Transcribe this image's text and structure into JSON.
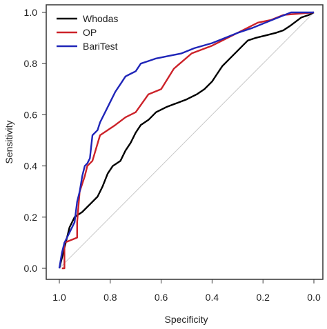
{
  "chart_data": {
    "type": "line",
    "title": "",
    "xlabel": "Specificity",
    "ylabel": "Sensitivity",
    "xlim": [
      1.0,
      0.0
    ],
    "ylim": [
      0.0,
      1.0
    ],
    "x_reversed": true,
    "xticks": [
      "1.0",
      "0.8",
      "0.6",
      "0.4",
      "0.2",
      "0.0"
    ],
    "yticks": [
      "0.0",
      "0.2",
      "0.4",
      "0.6",
      "0.8",
      "1.0"
    ],
    "grid": false,
    "legend_position": "top-left",
    "reference_line": {
      "from": [
        1.0,
        0.0
      ],
      "to": [
        0.0,
        1.0
      ],
      "color": "#c8c8c8"
    },
    "series": [
      {
        "name": "Whodas",
        "color": "#000000",
        "points": [
          [
            1.0,
            0.0
          ],
          [
            0.99,
            0.04
          ],
          [
            0.98,
            0.08
          ],
          [
            0.97,
            0.12
          ],
          [
            0.96,
            0.16
          ],
          [
            0.94,
            0.2
          ],
          [
            0.91,
            0.22
          ],
          [
            0.88,
            0.25
          ],
          [
            0.85,
            0.28
          ],
          [
            0.83,
            0.32
          ],
          [
            0.81,
            0.37
          ],
          [
            0.79,
            0.4
          ],
          [
            0.76,
            0.42
          ],
          [
            0.74,
            0.46
          ],
          [
            0.72,
            0.49
          ],
          [
            0.7,
            0.53
          ],
          [
            0.68,
            0.56
          ],
          [
            0.65,
            0.58
          ],
          [
            0.62,
            0.61
          ],
          [
            0.58,
            0.63
          ],
          [
            0.54,
            0.645
          ],
          [
            0.5,
            0.66
          ],
          [
            0.46,
            0.68
          ],
          [
            0.43,
            0.7
          ],
          [
            0.4,
            0.73
          ],
          [
            0.38,
            0.76
          ],
          [
            0.36,
            0.79
          ],
          [
            0.33,
            0.82
          ],
          [
            0.3,
            0.85
          ],
          [
            0.28,
            0.87
          ],
          [
            0.26,
            0.89
          ],
          [
            0.23,
            0.9
          ],
          [
            0.19,
            0.91
          ],
          [
            0.15,
            0.92
          ],
          [
            0.12,
            0.93
          ],
          [
            0.09,
            0.95
          ],
          [
            0.05,
            0.98
          ],
          [
            0.02,
            0.99
          ],
          [
            0.0,
            1.0
          ]
        ]
      },
      {
        "name": "OP",
        "color": "#cc2229",
        "points": [
          [
            0.99,
            0.0
          ],
          [
            0.98,
            0.0
          ],
          [
            0.98,
            0.1
          ],
          [
            0.93,
            0.12
          ],
          [
            0.93,
            0.18
          ],
          [
            0.92,
            0.3
          ],
          [
            0.9,
            0.36
          ],
          [
            0.89,
            0.4
          ],
          [
            0.87,
            0.42
          ],
          [
            0.84,
            0.52
          ],
          [
            0.78,
            0.56
          ],
          [
            0.74,
            0.59
          ],
          [
            0.7,
            0.61
          ],
          [
            0.65,
            0.68
          ],
          [
            0.6,
            0.7
          ],
          [
            0.55,
            0.78
          ],
          [
            0.48,
            0.84
          ],
          [
            0.4,
            0.87
          ],
          [
            0.3,
            0.92
          ],
          [
            0.22,
            0.96
          ],
          [
            0.17,
            0.97
          ],
          [
            0.12,
            0.99
          ],
          [
            0.0,
            1.0
          ]
        ]
      },
      {
        "name": "BariTest",
        "color": "#1f25b8",
        "points": [
          [
            1.0,
            0.0
          ],
          [
            0.99,
            0.06
          ],
          [
            0.98,
            0.1
          ],
          [
            0.96,
            0.14
          ],
          [
            0.94,
            0.18
          ],
          [
            0.93,
            0.26
          ],
          [
            0.92,
            0.3
          ],
          [
            0.91,
            0.36
          ],
          [
            0.9,
            0.4
          ],
          [
            0.89,
            0.41
          ],
          [
            0.88,
            0.43
          ],
          [
            0.87,
            0.52
          ],
          [
            0.85,
            0.54
          ],
          [
            0.84,
            0.57
          ],
          [
            0.82,
            0.61
          ],
          [
            0.8,
            0.65
          ],
          [
            0.78,
            0.69
          ],
          [
            0.76,
            0.72
          ],
          [
            0.74,
            0.75
          ],
          [
            0.72,
            0.76
          ],
          [
            0.7,
            0.77
          ],
          [
            0.68,
            0.8
          ],
          [
            0.65,
            0.81
          ],
          [
            0.62,
            0.82
          ],
          [
            0.57,
            0.83
          ],
          [
            0.52,
            0.84
          ],
          [
            0.47,
            0.86
          ],
          [
            0.4,
            0.88
          ],
          [
            0.35,
            0.9
          ],
          [
            0.3,
            0.92
          ],
          [
            0.24,
            0.94
          ],
          [
            0.19,
            0.96
          ],
          [
            0.14,
            0.98
          ],
          [
            0.09,
            1.0
          ],
          [
            0.0,
            1.0
          ]
        ]
      }
    ]
  }
}
